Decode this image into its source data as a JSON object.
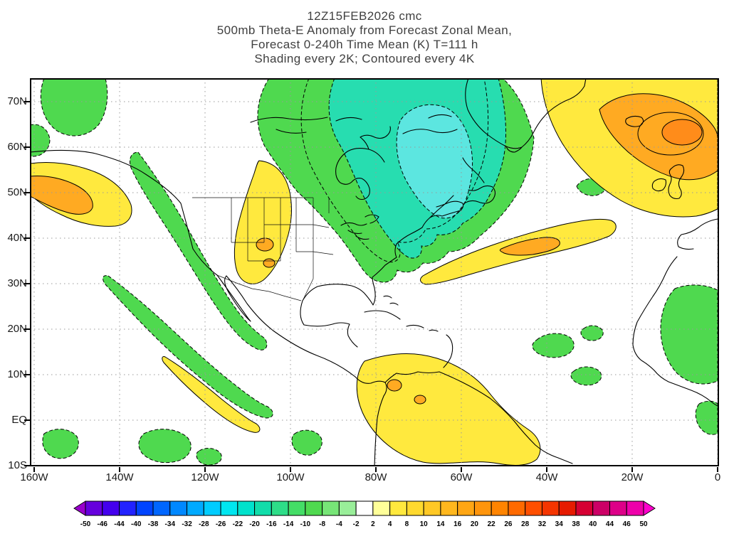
{
  "title": {
    "line1": "12Z15FEB2026 cmc",
    "line2": "500mb Theta-E Anomaly from Forecast Zonal Mean,",
    "line3": "Forecast 0-240h Time Mean (K) T=111 h",
    "line4": "Shading every 2K; Contoured every 4K"
  },
  "axes": {
    "lat_ticks": [
      "70N",
      "60N",
      "50N",
      "40N",
      "30N",
      "20N",
      "10N",
      "EQ",
      "10S"
    ],
    "lon_ticks": [
      "160W",
      "140W",
      "120W",
      "100W",
      "80W",
      "60W",
      "40W",
      "20W",
      "0"
    ]
  },
  "colorbar": {
    "labels": [
      "-50",
      "-46",
      "-44",
      "-40",
      "-38",
      "-34",
      "-32",
      "-28",
      "-26",
      "-22",
      "-20",
      "-16",
      "-14",
      "-10",
      "-8",
      "-4",
      "-2",
      "2",
      "4",
      "8",
      "10",
      "14",
      "16",
      "20",
      "22",
      "26",
      "28",
      "32",
      "34",
      "38",
      "40",
      "44",
      "46",
      "50"
    ],
    "colors": [
      "#9900cc",
      "#6600dd",
      "#4400ee",
      "#2222ff",
      "#0044ff",
      "#0066ff",
      "#0088ff",
      "#00aaff",
      "#00ccff",
      "#00e6f0",
      "#00e2cc",
      "#11ddaa",
      "#2edd88",
      "#44dd66",
      "#4fd94f",
      "#77e577",
      "#99ee99",
      "#ffffff",
      "#ffff99",
      "#ffe93e",
      "#ffd92e",
      "#ffc825",
      "#ffb71d",
      "#ffa614",
      "#ff950c",
      "#ff8400",
      "#ff6a00",
      "#ff4f00",
      "#f53500",
      "#e61b00",
      "#d60033",
      "#cc0066",
      "#dd0088",
      "#ee00aa",
      "#ff00cc"
    ]
  },
  "map_palette": {
    "green": "#4fd94f",
    "teal": "#27ddb0",
    "cyan": "#5ce6e0",
    "yellow": "#ffe93e",
    "orange": "#ffaa22",
    "deep_orange": "#ff8c1a"
  },
  "chart_data": {
    "type": "filled_contour_map",
    "model": "cmc",
    "init_time": "12Z15FEB2026",
    "field": "500mb Theta-E Anomaly from Forecast Zonal Mean",
    "forecast": "0-240h Time Mean (K) T=111 h",
    "units": "K",
    "shading_interval_K": 2,
    "contour_interval_K": 4,
    "lon_ticks": [
      "160W",
      "140W",
      "120W",
      "100W",
      "80W",
      "60W",
      "40W",
      "20W",
      "0"
    ],
    "lat_ticks": [
      "70N",
      "60N",
      "50N",
      "40N",
      "30N",
      "20N",
      "10N",
      "EQ",
      "10S"
    ],
    "colorbar_levels": [
      -50,
      -46,
      -44,
      -40,
      -38,
      -34,
      -32,
      -28,
      -26,
      -22,
      -20,
      -16,
      -14,
      -10,
      -8,
      -4,
      -2,
      2,
      4,
      8,
      10,
      14,
      16,
      20,
      22,
      26,
      28,
      32,
      34,
      38,
      40,
      44,
      46,
      50
    ],
    "anomaly_features": [
      {
        "region": "Northeastern Canada, Hudson Bay, Quebec and northwest Atlantic",
        "sign": "negative",
        "approx_extreme_K": -14
      },
      {
        "region": "US east coast and western Atlantic 30-40N (southern lobe of main negative area)",
        "sign": "negative",
        "approx_extreme_K": -8
      },
      {
        "region": "Band along North American west coast from British Columbia to Mexico",
        "sign": "negative",
        "approx_extreme_K": -6
      },
      {
        "region": "Gulf of Alaska / top-left corner",
        "sign": "negative",
        "approx_extreme_K": -4
      },
      {
        "region": "Diagonal band over subtropical central Pacific",
        "sign": "negative",
        "approx_extreme_K": -4
      },
      {
        "region": "Tropical central Pacific near equator (bottom-left blobs)",
        "sign": "negative",
        "approx_extreme_K": -4
      },
      {
        "region": "West Africa and eastern tropical Atlantic blobs",
        "sign": "negative",
        "approx_extreme_K": -4
      },
      {
        "region": "Small cell in central North Atlantic near 50N 28W",
        "sign": "negative",
        "approx_extreme_K": -4
      },
      {
        "region": "Northeast Pacific near 48N 150W (left edge, orange core)",
        "sign": "positive",
        "approx_extreme_K": 12
      },
      {
        "region": "Central/western United States Rockies and Plains (small orange cores over Colorado / New Mexico)",
        "sign": "positive",
        "approx_extreme_K": 12
      },
      {
        "region": "Central North Atlantic band 35-47N with orange core near 42N 45W",
        "sign": "positive",
        "approx_extreme_K": 12
      },
      {
        "region": "Northeast Atlantic and western Europe, strongest core over British Isles / Norwegian Sea",
        "sign": "positive",
        "approx_extreme_K": 18
      },
      {
        "region": "Northern South America and adjacent tropical Atlantic (small orange spots over Colombia / Venezuela)",
        "sign": "positive",
        "approx_extreme_K": 10
      }
    ]
  }
}
